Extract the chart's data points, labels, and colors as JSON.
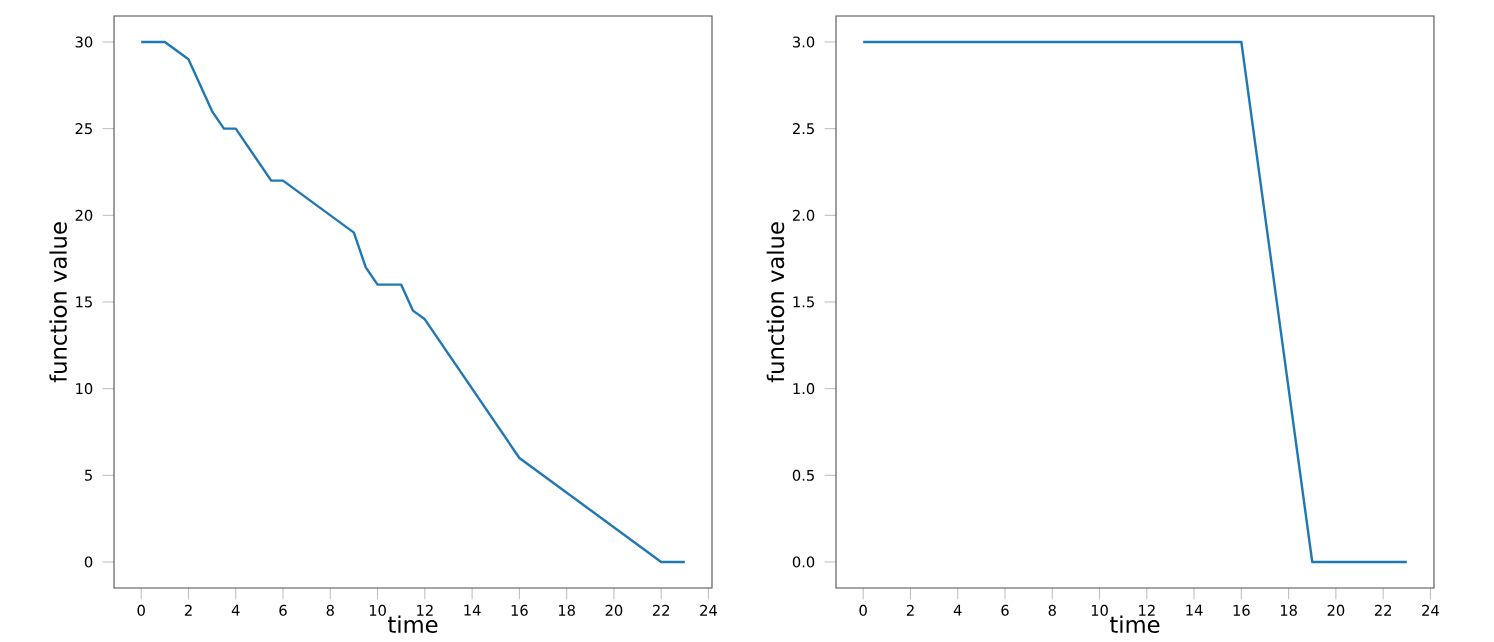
{
  "chart_data": [
    {
      "type": "line",
      "xlabel": "time",
      "ylabel": "function value",
      "color": "#1f77b4",
      "x": [
        0,
        1,
        2,
        3,
        3.5,
        4,
        5.5,
        6,
        9,
        9.5,
        10,
        11,
        11.5,
        12,
        16,
        22,
        23
      ],
      "values": [
        30,
        30,
        29,
        26,
        25,
        25,
        22,
        22,
        19,
        17,
        16,
        16,
        14.5,
        14,
        6,
        0,
        0
      ],
      "xlim": [
        -1.15,
        24.15
      ],
      "ylim": [
        -1.5,
        31.5
      ],
      "xticks": [
        0,
        2,
        4,
        6,
        8,
        10,
        12,
        14,
        16,
        18,
        20,
        22,
        24
      ],
      "yticks": [
        0,
        5,
        10,
        15,
        20,
        25,
        30
      ],
      "grid": false
    },
    {
      "type": "line",
      "xlabel": "time",
      "ylabel": "function value",
      "color": "#1f77b4",
      "x": [
        0,
        16,
        19,
        23
      ],
      "values": [
        3,
        3,
        0,
        0
      ],
      "xlim": [
        -1.15,
        24.15
      ],
      "ylim": [
        -0.15,
        3.15
      ],
      "xticks": [
        0,
        2,
        4,
        6,
        8,
        10,
        12,
        14,
        16,
        18,
        20,
        22,
        24
      ],
      "yticks": [
        {
          "value": 0,
          "label": "0.0"
        },
        {
          "value": 0.5,
          "label": "0.5"
        },
        {
          "value": 1,
          "label": "1.0"
        },
        {
          "value": 1.5,
          "label": "1.5"
        },
        {
          "value": 2,
          "label": "2.0"
        },
        {
          "value": 2.5,
          "label": "2.5"
        },
        {
          "value": 3,
          "label": "3.0"
        }
      ],
      "grid": false
    }
  ]
}
